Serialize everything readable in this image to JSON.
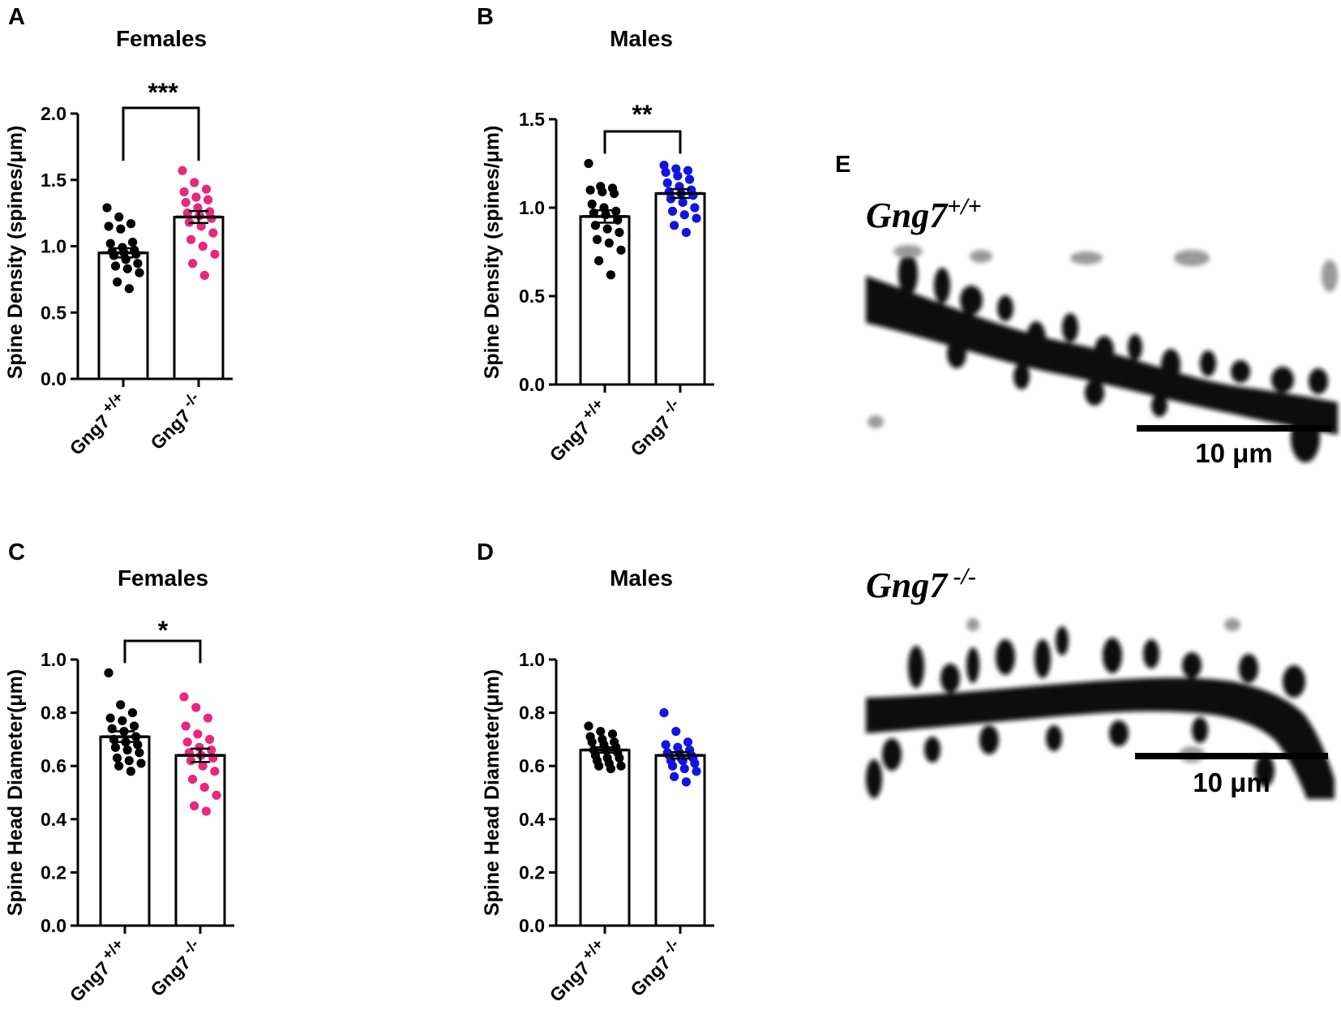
{
  "figure": {
    "colors": {
      "wt_points": "#000000",
      "female_ko_points": "#e8287f",
      "male_ko_points": "#1414e0",
      "bar_fill": "#ffffff",
      "ink": "#000000"
    }
  },
  "chart_data": [
    {
      "panel": "A",
      "type": "bar",
      "title": "Females",
      "ylabel": "Spine Density (spines/μm)",
      "xlabel": "",
      "ylim": [
        0,
        2.0
      ],
      "yticks": [
        "0.0",
        "0.5",
        "1.0",
        "1.5",
        "2.0"
      ],
      "ytick_values": [
        0,
        0.5,
        1.0,
        1.5,
        2.0
      ],
      "categories": [
        {
          "base": "Gng7",
          "sup": "+/+"
        },
        {
          "base": "Gng7",
          "sup": "-/-"
        }
      ],
      "series": [
        {
          "name": "Gng7 +/+",
          "mean": 0.95,
          "sem": 0.035,
          "color_key": "wt_points",
          "points": [
            1.29,
            1.22,
            1.17,
            1.15,
            1.13,
            1.03,
            1.02,
            0.99,
            0.97,
            0.96,
            0.95,
            0.94,
            0.93,
            0.9,
            0.87,
            0.85,
            0.83,
            0.8,
            0.73,
            0.68
          ]
        },
        {
          "name": "Gng7 -/-",
          "mean": 1.22,
          "sem": 0.045,
          "color_key": "female_ko_points",
          "points": [
            1.57,
            1.48,
            1.43,
            1.41,
            1.37,
            1.35,
            1.33,
            1.29,
            1.26,
            1.25,
            1.23,
            1.21,
            1.18,
            1.15,
            1.1,
            1.05,
            1.0,
            0.94,
            0.87,
            0.78
          ]
        }
      ],
      "significance": "***"
    },
    {
      "panel": "B",
      "type": "bar",
      "title": "Males",
      "ylabel": "Spine Density (spines/μm)",
      "xlabel": "",
      "ylim": [
        0,
        1.5
      ],
      "yticks": [
        "0.0",
        "0.5",
        "1.0",
        "1.5"
      ],
      "ytick_values": [
        0,
        0.5,
        1.0,
        1.5
      ],
      "categories": [
        {
          "base": "Gng7",
          "sup": "+/+"
        },
        {
          "base": "Gng7",
          "sup": "-/-"
        }
      ],
      "series": [
        {
          "name": "Gng7 +/+",
          "mean": 0.95,
          "sem": 0.035,
          "color_key": "wt_points",
          "points": [
            1.25,
            1.12,
            1.11,
            1.1,
            1.09,
            1.08,
            1.02,
            1.0,
            0.98,
            0.97,
            0.96,
            0.93,
            0.9,
            0.88,
            0.86,
            0.82,
            0.8,
            0.76,
            0.7,
            0.62
          ]
        },
        {
          "name": "Gng7 -/-",
          "mean": 1.08,
          "sem": 0.025,
          "color_key": "male_ko_points",
          "points": [
            1.24,
            1.22,
            1.21,
            1.2,
            1.18,
            1.16,
            1.14,
            1.12,
            1.1,
            1.09,
            1.08,
            1.07,
            1.05,
            1.03,
            1.0,
            0.98,
            0.96,
            0.94,
            0.9,
            0.86
          ]
        }
      ],
      "significance": "**"
    },
    {
      "panel": "C",
      "type": "bar",
      "title": "Females",
      "ylabel": "Spine Head Diameter(μm)",
      "xlabel": "",
      "ylim": [
        0,
        1.0
      ],
      "yticks": [
        "0.0",
        "0.2",
        "0.4",
        "0.6",
        "0.8",
        "1.0"
      ],
      "ytick_values": [
        0,
        0.2,
        0.4,
        0.6,
        0.8,
        1.0
      ],
      "categories": [
        {
          "base": "Gng7",
          "sup": "+/+"
        },
        {
          "base": "Gng7",
          "sup": "-/-"
        }
      ],
      "series": [
        {
          "name": "Gng7 +/+",
          "mean": 0.71,
          "sem": 0.02,
          "color_key": "wt_points",
          "points": [
            0.95,
            0.83,
            0.8,
            0.78,
            0.77,
            0.75,
            0.74,
            0.73,
            0.71,
            0.7,
            0.69,
            0.68,
            0.67,
            0.66,
            0.65,
            0.63,
            0.62,
            0.61,
            0.6,
            0.58
          ]
        },
        {
          "name": "Gng7 -/-",
          "mean": 0.64,
          "sem": 0.025,
          "color_key": "female_ko_points",
          "points": [
            0.86,
            0.82,
            0.78,
            0.75,
            0.72,
            0.7,
            0.69,
            0.67,
            0.66,
            0.65,
            0.64,
            0.63,
            0.62,
            0.6,
            0.58,
            0.55,
            0.52,
            0.49,
            0.45,
            0.43
          ]
        }
      ],
      "significance": "*"
    },
    {
      "panel": "D",
      "type": "bar",
      "title": "Males",
      "ylabel": "Spine Head Diameter(μm)",
      "xlabel": "",
      "ylim": [
        0,
        1.0
      ],
      "yticks": [
        "0.0",
        "0.2",
        "0.4",
        "0.6",
        "0.8",
        "1.0"
      ],
      "ytick_values": [
        0,
        0.2,
        0.4,
        0.6,
        0.8,
        1.0
      ],
      "categories": [
        {
          "base": "Gng7",
          "sup": "+/+"
        },
        {
          "base": "Gng7",
          "sup": "-/-"
        }
      ],
      "series": [
        {
          "name": "Gng7 +/+",
          "mean": 0.66,
          "sem": 0.01,
          "color_key": "wt_points",
          "points": [
            0.75,
            0.73,
            0.72,
            0.71,
            0.7,
            0.69,
            0.69,
            0.68,
            0.67,
            0.66,
            0.66,
            0.65,
            0.64,
            0.63,
            0.63,
            0.62,
            0.61,
            0.6,
            0.6,
            0.59
          ]
        },
        {
          "name": "Gng7 -/-",
          "mean": 0.64,
          "sem": 0.012,
          "color_key": "male_ko_points",
          "points": [
            0.8,
            0.73,
            0.69,
            0.68,
            0.67,
            0.66,
            0.65,
            0.65,
            0.64,
            0.64,
            0.63,
            0.63,
            0.62,
            0.62,
            0.61,
            0.6,
            0.59,
            0.58,
            0.56,
            0.54
          ]
        }
      ],
      "significance": ""
    }
  ],
  "panel_e": {
    "letter": "E",
    "images": [
      {
        "label_base": "Gng7",
        "label_sup": "+/+",
        "scale_label": "10 μm"
      },
      {
        "label_base": "Gng7",
        "label_sup": " -/-",
        "scale_label": "10 μm"
      }
    ]
  }
}
